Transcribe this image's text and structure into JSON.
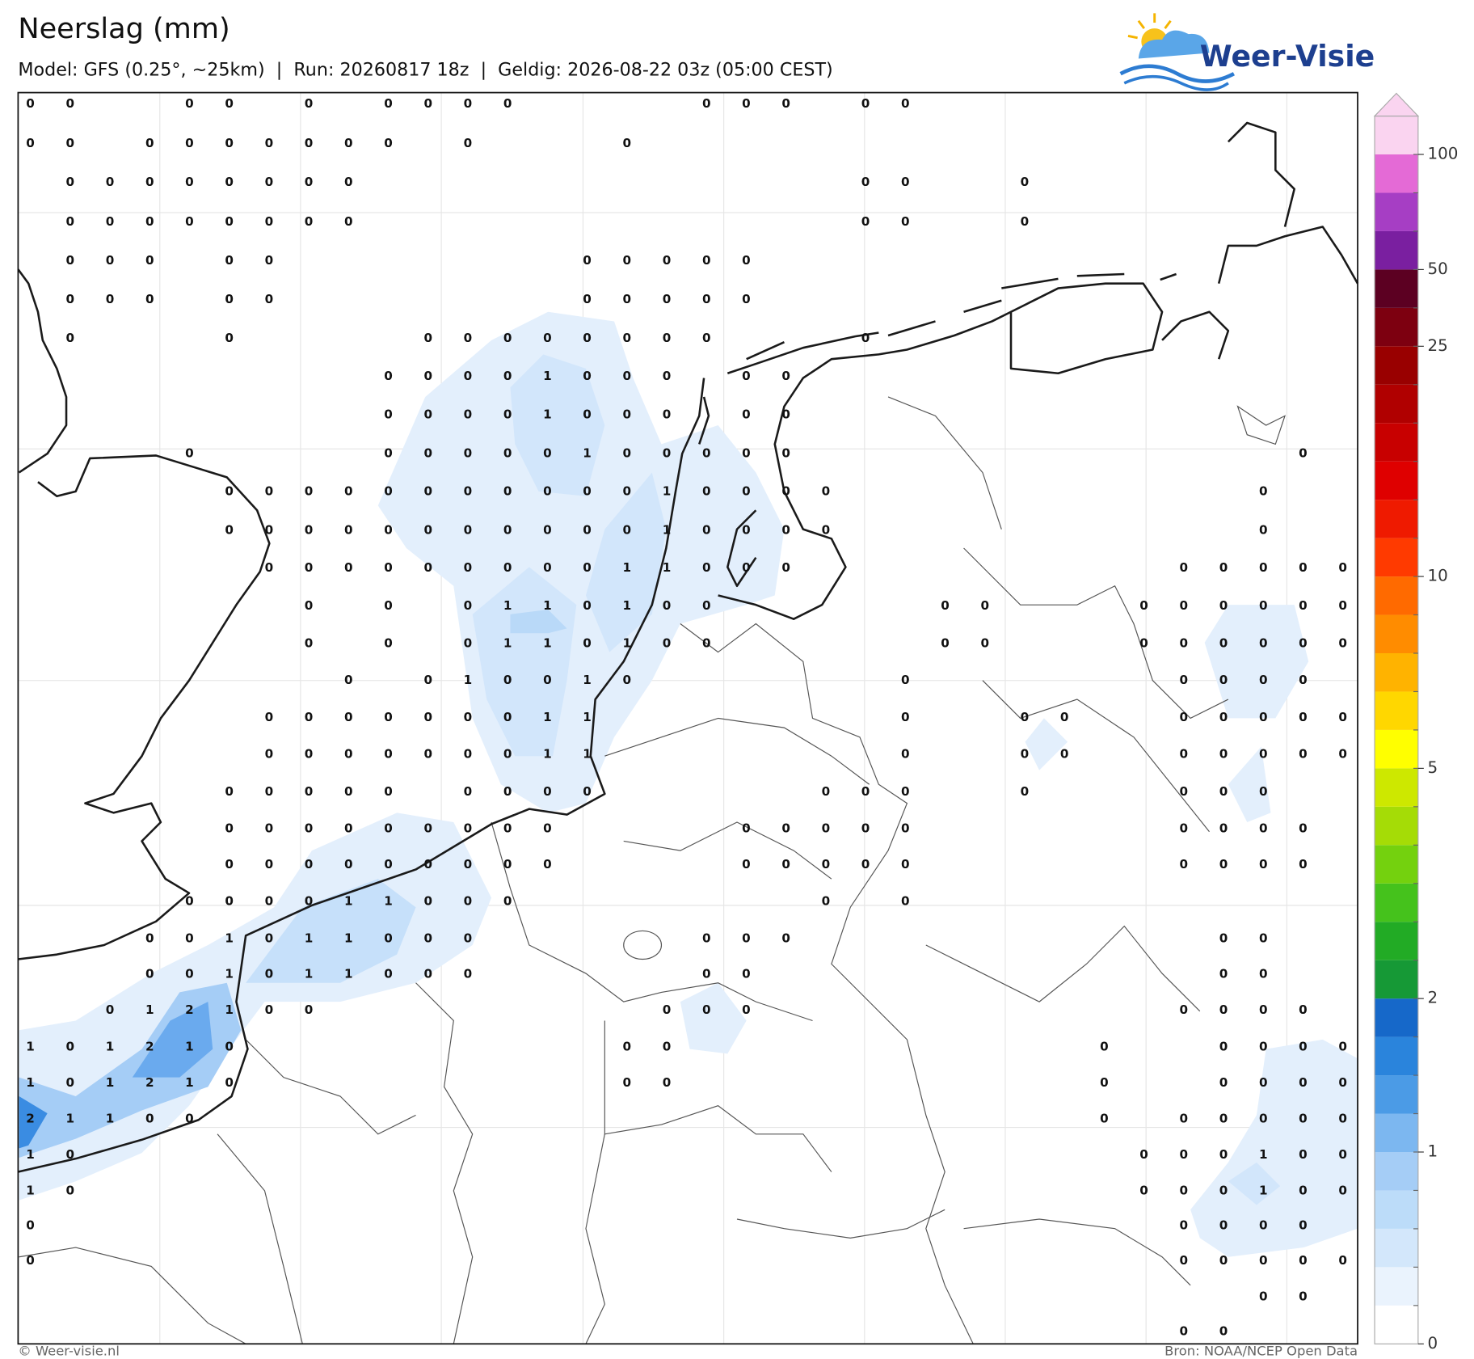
{
  "header": {
    "title": "Neerslag (mm)",
    "subtitle": "Model: GFS (0.25°, ~25km)  |  Run: 20260817 18z  |  Geldig: 2026-08-22 03z (05:00 CEST)",
    "logo": "Weer-Visie"
  },
  "footer": {
    "copyright": "© Weer-visie.nl",
    "source": "Bron: NOAA/NCEP Open Data"
  },
  "colorbar": {
    "ticks": [
      0,
      1,
      2,
      5,
      10,
      25,
      50,
      100
    ],
    "colors": [
      "#ffffff",
      "#eaf3fd",
      "#d3e7fb",
      "#bcdcf9",
      "#a5cdf6",
      "#7cb7f0",
      "#4b9be6",
      "#2a84dc",
      "#1668c9",
      "#169936",
      "#22ab25",
      "#45c21c",
      "#74d10e",
      "#a5dc06",
      "#cde800",
      "#ffff00",
      "#ffd700",
      "#ffb300",
      "#ff8c00",
      "#ff6a00",
      "#ff3a00",
      "#ef1a00",
      "#df0000",
      "#c80000",
      "#b00000",
      "#990000",
      "#7d0010",
      "#5c0022",
      "#7a1fa0",
      "#a63ec4",
      "#e46ad6",
      "#fad4f0"
    ]
  },
  "map": {
    "grid_values": [
      [
        0,
        0,
        null,
        null,
        0,
        0,
        null,
        0,
        null,
        0,
        0,
        0,
        0,
        null,
        null,
        null,
        null,
        0,
        0,
        0,
        null,
        0,
        0,
        null,
        null,
        null,
        null,
        null,
        null,
        null,
        null,
        null,
        null,
        null
      ],
      [
        0,
        0,
        null,
        0,
        0,
        0,
        0,
        0,
        0,
        0,
        null,
        0,
        null,
        null,
        null,
        0,
        null,
        null,
        null,
        null,
        null,
        null,
        null,
        null,
        null,
        null,
        null,
        null,
        null,
        null,
        null,
        null,
        null,
        null
      ],
      [
        null,
        0,
        0,
        0,
        0,
        0,
        0,
        0,
        0,
        null,
        null,
        null,
        null,
        null,
        null,
        null,
        null,
        null,
        null,
        null,
        null,
        0,
        0,
        null,
        null,
        0,
        null,
        null,
        null,
        null,
        null,
        null,
        null,
        null
      ],
      [
        null,
        0,
        0,
        0,
        0,
        0,
        0,
        0,
        0,
        null,
        null,
        null,
        null,
        null,
        null,
        null,
        null,
        null,
        null,
        null,
        null,
        0,
        0,
        null,
        null,
        0,
        null,
        null,
        null,
        null,
        null,
        null,
        null,
        null
      ],
      [
        null,
        0,
        0,
        0,
        null,
        0,
        0,
        null,
        null,
        null,
        null,
        null,
        null,
        null,
        0,
        0,
        0,
        0,
        0,
        null,
        null,
        null,
        null,
        null,
        null,
        null,
        null,
        null,
        null,
        null,
        null,
        null,
        null,
        null
      ],
      [
        null,
        0,
        0,
        0,
        null,
        0,
        0,
        null,
        null,
        null,
        null,
        null,
        null,
        null,
        0,
        0,
        0,
        0,
        0,
        null,
        null,
        null,
        null,
        null,
        null,
        null,
        null,
        null,
        null,
        null,
        null,
        null,
        null,
        null
      ],
      [
        null,
        0,
        null,
        null,
        null,
        0,
        null,
        null,
        null,
        null,
        0,
        0,
        0,
        0,
        0,
        0,
        0,
        0,
        null,
        null,
        null,
        0,
        null,
        null,
        null,
        null,
        null,
        null,
        null,
        null,
        null,
        null,
        null,
        null
      ],
      [
        null,
        null,
        null,
        null,
        null,
        null,
        null,
        null,
        null,
        0,
        0,
        0,
        0,
        1,
        0,
        0,
        0,
        null,
        0,
        0,
        null,
        null,
        null,
        null,
        null,
        null,
        null,
        null,
        null,
        null,
        null,
        null,
        null,
        null
      ],
      [
        null,
        null,
        null,
        null,
        null,
        null,
        null,
        null,
        null,
        0,
        0,
        0,
        0,
        1,
        0,
        0,
        0,
        null,
        0,
        0,
        null,
        null,
        null,
        null,
        null,
        null,
        null,
        null,
        null,
        null,
        null,
        null,
        null,
        null
      ],
      [
        null,
        null,
        null,
        null,
        0,
        null,
        null,
        null,
        null,
        0,
        0,
        0,
        0,
        0,
        1,
        0,
        0,
        0,
        0,
        0,
        null,
        null,
        null,
        null,
        null,
        null,
        null,
        null,
        null,
        null,
        null,
        null,
        0,
        null
      ],
      [
        null,
        null,
        null,
        null,
        null,
        0,
        0,
        0,
        0,
        0,
        0,
        0,
        0,
        0,
        0,
        0,
        1,
        0,
        0,
        0,
        0,
        null,
        null,
        null,
        null,
        null,
        null,
        null,
        null,
        null,
        null,
        0,
        null,
        null
      ],
      [
        null,
        null,
        null,
        null,
        null,
        0,
        0,
        0,
        0,
        0,
        0,
        0,
        0,
        0,
        0,
        0,
        1,
        0,
        0,
        0,
        0,
        null,
        null,
        null,
        null,
        null,
        null,
        null,
        null,
        null,
        null,
        0,
        null,
        null
      ],
      [
        null,
        null,
        null,
        null,
        null,
        null,
        0,
        0,
        0,
        0,
        0,
        0,
        0,
        0,
        0,
        1,
        1,
        0,
        0,
        0,
        null,
        null,
        null,
        null,
        null,
        null,
        null,
        null,
        null,
        0,
        0,
        0,
        0,
        0
      ],
      [
        null,
        null,
        null,
        null,
        null,
        null,
        null,
        0,
        null,
        0,
        null,
        0,
        1,
        1,
        0,
        1,
        0,
        0,
        null,
        null,
        null,
        null,
        null,
        0,
        0,
        null,
        null,
        null,
        0,
        0,
        0,
        0,
        0,
        0
      ],
      [
        null,
        null,
        null,
        null,
        null,
        null,
        null,
        0,
        null,
        0,
        null,
        0,
        1,
        1,
        0,
        1,
        0,
        0,
        null,
        null,
        null,
        null,
        null,
        0,
        0,
        null,
        null,
        null,
        0,
        0,
        0,
        0,
        0,
        0
      ],
      [
        null,
        null,
        null,
        null,
        null,
        null,
        null,
        null,
        0,
        null,
        0,
        1,
        0,
        0,
        1,
        0,
        null,
        null,
        null,
        null,
        null,
        null,
        0,
        null,
        null,
        null,
        null,
        null,
        null,
        0,
        0,
        0,
        0,
        null
      ],
      [
        null,
        null,
        null,
        null,
        null,
        null,
        0,
        0,
        0,
        0,
        0,
        0,
        0,
        1,
        1,
        null,
        null,
        null,
        null,
        null,
        null,
        null,
        0,
        null,
        null,
        0,
        0,
        null,
        null,
        0,
        0,
        0,
        0,
        0
      ],
      [
        null,
        null,
        null,
        null,
        null,
        null,
        0,
        0,
        0,
        0,
        0,
        0,
        0,
        1,
        1,
        null,
        null,
        null,
        null,
        null,
        null,
        null,
        0,
        null,
        null,
        0,
        0,
        null,
        null,
        0,
        0,
        0,
        0,
        0
      ],
      [
        null,
        null,
        null,
        null,
        null,
        0,
        0,
        0,
        0,
        0,
        null,
        0,
        0,
        0,
        0,
        null,
        null,
        null,
        null,
        null,
        0,
        0,
        0,
        null,
        null,
        0,
        null,
        null,
        null,
        0,
        0,
        0,
        null,
        null
      ],
      [
        null,
        null,
        null,
        null,
        null,
        0,
        0,
        0,
        0,
        0,
        0,
        0,
        0,
        0,
        null,
        null,
        null,
        null,
        0,
        0,
        0,
        0,
        0,
        null,
        null,
        null,
        null,
        null,
        null,
        0,
        0,
        0,
        0,
        null
      ],
      [
        null,
        null,
        null,
        null,
        null,
        0,
        0,
        0,
        0,
        0,
        0,
        0,
        0,
        0,
        null,
        null,
        null,
        null,
        0,
        0,
        0,
        0,
        0,
        null,
        null,
        null,
        null,
        null,
        null,
        0,
        0,
        0,
        0,
        null
      ],
      [
        null,
        null,
        null,
        null,
        0,
        0,
        0,
        0,
        1,
        1,
        0,
        0,
        0,
        null,
        null,
        null,
        null,
        null,
        null,
        null,
        0,
        null,
        0,
        null,
        null,
        null,
        null,
        null,
        null,
        null,
        null,
        null,
        null,
        null
      ],
      [
        null,
        null,
        null,
        0,
        0,
        1,
        0,
        1,
        1,
        0,
        0,
        0,
        null,
        null,
        null,
        null,
        null,
        0,
        0,
        0,
        null,
        null,
        null,
        null,
        null,
        null,
        null,
        null,
        null,
        null,
        0,
        0,
        null,
        null
      ],
      [
        null,
        null,
        null,
        0,
        0,
        1,
        0,
        1,
        1,
        0,
        0,
        0,
        null,
        null,
        null,
        null,
        null,
        0,
        0,
        null,
        null,
        null,
        null,
        null,
        null,
        null,
        null,
        null,
        null,
        null,
        0,
        0,
        null,
        null
      ],
      [
        null,
        null,
        0,
        1,
        2,
        1,
        0,
        0,
        null,
        null,
        null,
        null,
        null,
        null,
        null,
        null,
        0,
        0,
        0,
        null,
        null,
        null,
        null,
        null,
        null,
        null,
        null,
        null,
        null,
        0,
        0,
        0,
        0,
        null
      ],
      [
        1,
        0,
        1,
        2,
        1,
        0,
        null,
        null,
        null,
        null,
        null,
        null,
        null,
        null,
        null,
        0,
        0,
        null,
        null,
        null,
        null,
        null,
        null,
        null,
        null,
        null,
        null,
        0,
        null,
        null,
        0,
        0,
        0,
        0
      ],
      [
        1,
        0,
        1,
        2,
        1,
        0,
        null,
        null,
        null,
        null,
        null,
        null,
        null,
        null,
        null,
        0,
        0,
        null,
        null,
        null,
        null,
        null,
        null,
        null,
        null,
        null,
        null,
        0,
        null,
        null,
        0,
        0,
        0,
        0
      ],
      [
        2,
        1,
        1,
        0,
        0,
        null,
        null,
        null,
        null,
        null,
        null,
        null,
        null,
        null,
        null,
        null,
        null,
        null,
        null,
        null,
        null,
        null,
        null,
        null,
        null,
        null,
        null,
        0,
        null,
        0,
        0,
        0,
        0,
        0
      ],
      [
        1,
        0,
        null,
        null,
        null,
        null,
        null,
        null,
        null,
        null,
        null,
        null,
        null,
        null,
        null,
        null,
        null,
        null,
        null,
        null,
        null,
        null,
        null,
        null,
        null,
        null,
        null,
        null,
        0,
        0,
        0,
        1,
        0,
        0
      ],
      [
        1,
        0,
        null,
        null,
        null,
        null,
        null,
        null,
        null,
        null,
        null,
        null,
        null,
        null,
        null,
        null,
        null,
        null,
        null,
        null,
        null,
        null,
        null,
        null,
        null,
        null,
        null,
        null,
        0,
        0,
        0,
        1,
        0,
        0
      ],
      [
        0,
        null,
        null,
        null,
        null,
        null,
        null,
        null,
        null,
        null,
        null,
        null,
        null,
        null,
        null,
        null,
        null,
        null,
        null,
        null,
        null,
        null,
        null,
        null,
        null,
        null,
        null,
        null,
        null,
        0,
        0,
        0,
        0,
        null
      ],
      [
        0,
        null,
        null,
        null,
        null,
        null,
        null,
        null,
        null,
        null,
        null,
        null,
        null,
        null,
        null,
        null,
        null,
        null,
        null,
        null,
        null,
        null,
        null,
        null,
        null,
        null,
        null,
        null,
        null,
        0,
        0,
        0,
        0,
        0
      ],
      [
        null,
        null,
        null,
        null,
        null,
        null,
        null,
        null,
        null,
        null,
        null,
        null,
        null,
        null,
        null,
        null,
        null,
        null,
        null,
        null,
        null,
        null,
        null,
        null,
        null,
        null,
        null,
        null,
        null,
        null,
        null,
        0,
        0,
        null
      ],
      [
        null,
        null,
        null,
        null,
        null,
        null,
        null,
        null,
        null,
        null,
        null,
        null,
        null,
        null,
        null,
        null,
        null,
        null,
        null,
        null,
        null,
        null,
        null,
        null,
        null,
        null,
        null,
        null,
        null,
        0,
        0,
        null,
        null,
        null
      ]
    ]
  }
}
